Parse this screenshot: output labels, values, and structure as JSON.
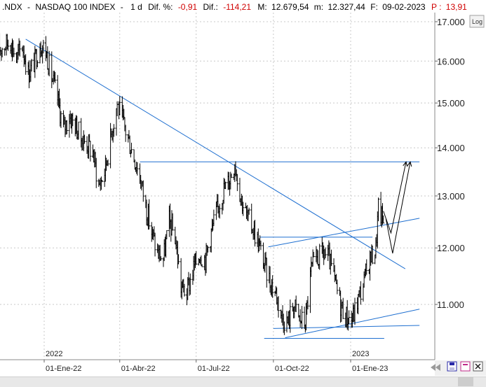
{
  "header": {
    "symbol": ".NDX",
    "sep": "-",
    "name": "NASDAQ 100 INDEX",
    "sep2": "-",
    "period": "1 d",
    "dif_pct_label": "Dif. %:",
    "dif_pct": "-0,91",
    "dif_label": "Dif.:",
    "dif": "-114,21",
    "max_label": "M:",
    "max": "12.679,54",
    "min_label": "m:",
    "min": "12.327,44",
    "date_label": "F:",
    "date": "09-02-2023",
    "p_label": "P :",
    "p": "13,91"
  },
  "scale_button": "Log",
  "colors": {
    "bars": "#000000",
    "trendlines": "#1e6fd0",
    "dif_negative": "#d00000",
    "grid": "#c8c8c8"
  },
  "chart_data": {
    "type": "ohlc",
    "log_scale": true,
    "grid": true,
    "ylim": [
      10300,
      17300
    ],
    "y_ticks": [
      {
        "value": 11000,
        "label": "11.000"
      },
      {
        "value": 12000,
        "label": "12.000"
      },
      {
        "value": 13000,
        "label": "13.000"
      },
      {
        "value": 14000,
        "label": "14.000"
      },
      {
        "value": 15000,
        "label": "15.000"
      },
      {
        "value": 16000,
        "label": "16.000"
      },
      {
        "value": 17000,
        "label": "17.000"
      }
    ],
    "x_range": [
      "2021-11-08",
      "2023-03-24"
    ],
    "x_ticks": [
      {
        "date": "2022-01-01",
        "label": "01-Ene-22"
      },
      {
        "date": "2022-04-01",
        "label": "01-Abr-22"
      },
      {
        "date": "2022-07-01",
        "label": "01-Jul-22"
      },
      {
        "date": "2022-10-01",
        "label": "01-Oct-22"
      },
      {
        "date": "2023-01-01",
        "label": "01-Ene-23"
      }
    ],
    "year_labels": [
      {
        "date": "2022-01-01",
        "label": "2022"
      },
      {
        "date": "2023-01-01",
        "label": "2023"
      }
    ],
    "closes": [
      [
        "2021-11-08",
        16300
      ],
      [
        "2021-11-22",
        16500
      ],
      [
        "2021-11-29",
        16050
      ],
      [
        "2021-12-06",
        16400
      ],
      [
        "2021-12-13",
        15700
      ],
      [
        "2021-12-20",
        15950
      ],
      [
        "2021-12-27",
        16450
      ],
      [
        "2022-01-03",
        16250
      ],
      [
        "2022-01-10",
        15600
      ],
      [
        "2022-01-17",
        15100
      ],
      [
        "2022-01-24",
        14400
      ],
      [
        "2022-01-31",
        14700
      ],
      [
        "2022-02-07",
        14500
      ],
      [
        "2022-02-14",
        14200
      ],
      [
        "2022-02-21",
        14100
      ],
      [
        "2022-02-28",
        13900
      ],
      [
        "2022-03-07",
        13200
      ],
      [
        "2022-03-14",
        13500
      ],
      [
        "2022-03-21",
        14200
      ],
      [
        "2022-03-29",
        15000
      ],
      [
        "2022-04-04",
        14600
      ],
      [
        "2022-04-11",
        14200
      ],
      [
        "2022-04-18",
        13800
      ],
      [
        "2022-04-25",
        13400
      ],
      [
        "2022-05-02",
        12800
      ],
      [
        "2022-05-09",
        12300
      ],
      [
        "2022-05-16",
        11900
      ],
      [
        "2022-05-23",
        11800
      ],
      [
        "2022-05-30",
        12500
      ],
      [
        "2022-06-06",
        12200
      ],
      [
        "2022-06-13",
        11300
      ],
      [
        "2022-06-20",
        11200
      ],
      [
        "2022-06-27",
        11600
      ],
      [
        "2022-07-05",
        11900
      ],
      [
        "2022-07-12",
        11800
      ],
      [
        "2022-07-19",
        12300
      ],
      [
        "2022-07-26",
        12700
      ],
      [
        "2022-08-02",
        13100
      ],
      [
        "2022-08-09",
        13300
      ],
      [
        "2022-08-16",
        13700
      ],
      [
        "2022-08-23",
        13000
      ],
      [
        "2022-08-30",
        12600
      ],
      [
        "2022-09-06",
        12400
      ],
      [
        "2022-09-13",
        12100
      ],
      [
        "2022-09-20",
        11700
      ],
      [
        "2022-09-27",
        11400
      ],
      [
        "2022-10-04",
        11200
      ],
      [
        "2022-10-11",
        10800
      ],
      [
        "2022-10-18",
        10700
      ],
      [
        "2022-10-25",
        11000
      ],
      [
        "2022-11-01",
        10750
      ],
      [
        "2022-11-08",
        10700
      ],
      [
        "2022-11-15",
        11600
      ],
      [
        "2022-11-22",
        11800
      ],
      [
        "2022-11-29",
        11900
      ],
      [
        "2022-12-06",
        11800
      ],
      [
        "2022-12-13",
        11400
      ],
      [
        "2022-12-20",
        11000
      ],
      [
        "2022-12-27",
        10800
      ],
      [
        "2023-01-03",
        10750
      ],
      [
        "2023-01-10",
        11100
      ],
      [
        "2023-01-17",
        11400
      ],
      [
        "2023-01-24",
        11800
      ],
      [
        "2023-01-31",
        12000
      ],
      [
        "2023-02-03",
        12750
      ],
      [
        "2023-02-09",
        12500
      ]
    ],
    "trendlines": [
      [
        [
          "2021-12-10",
          16550
        ],
        [
          "2023-03-07",
          11620
        ]
      ],
      [
        [
          "2022-04-25",
          13700
        ],
        [
          "2023-03-24",
          13700
        ]
      ],
      [
        [
          "2022-09-15",
          12200
        ],
        [
          "2023-01-27",
          12200
        ]
      ],
      [
        [
          "2022-09-25",
          12020
        ],
        [
          "2023-03-24",
          12560
        ]
      ],
      [
        [
          "2022-10-01",
          10600
        ],
        [
          "2023-03-24",
          10650
        ]
      ],
      [
        [
          "2022-10-15",
          10450
        ],
        [
          "2023-03-24",
          10920
        ]
      ],
      [
        [
          "2022-09-20",
          10440
        ],
        [
          "2023-02-10",
          10440
        ]
      ]
    ],
    "arrows": [
      [
        [
          "2023-02-09",
          12700
        ],
        [
          "2023-02-18",
          12280
        ],
        [
          "2023-03-08",
          13700
        ]
      ],
      [
        [
          "2023-02-12",
          12550
        ],
        [
          "2023-02-20",
          11900
        ],
        [
          "2023-03-13",
          13700
        ]
      ]
    ]
  }
}
